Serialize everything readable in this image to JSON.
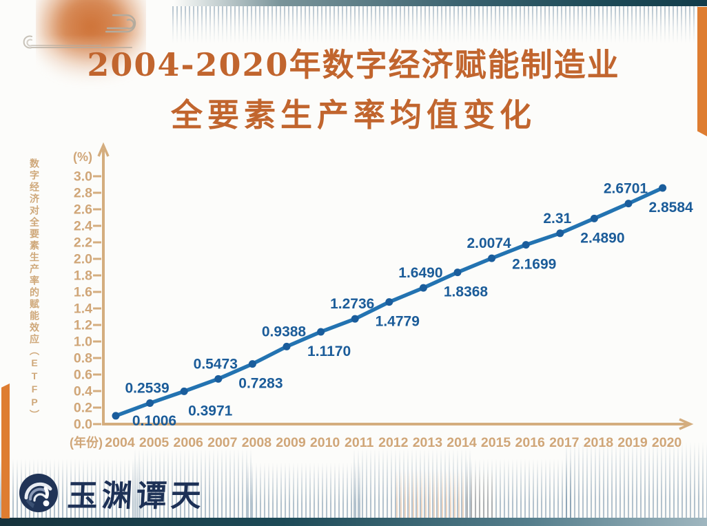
{
  "header": {
    "title_line1": "2004-2020年数字经济赋能制造业",
    "title_line2": "全要素生产率均值变化",
    "title_color": "#c1652e"
  },
  "chart_data": {
    "type": "line",
    "title": "2004-2020年数字经济赋能制造业全要素生产率均值变化",
    "x": [
      2004,
      2005,
      2006,
      2007,
      2008,
      2009,
      2010,
      2011,
      2012,
      2013,
      2014,
      2015,
      2016,
      2017,
      2018,
      2019,
      2020
    ],
    "values": [
      0.1006,
      0.2539,
      0.3971,
      0.5473,
      0.7283,
      0.9388,
      1.117,
      1.2736,
      1.4779,
      1.649,
      1.8368,
      2.0074,
      2.1699,
      2.31,
      2.489,
      2.6701,
      2.8584
    ],
    "point_labels": [
      "0.1006",
      "0.2539",
      "0.3971",
      "0.5473",
      "0.7283",
      "0.9388",
      "1.1170",
      "1.2736",
      "1.4779",
      "1.6490",
      "1.8368",
      "2.0074",
      "2.1699",
      "2.31",
      "2.4890",
      "2.6701",
      "2.8584"
    ],
    "label_placement": [
      "right",
      "above",
      "below",
      "above",
      "below",
      "above",
      "below",
      "above",
      "below",
      "above",
      "below",
      "above",
      "below",
      "above",
      "below",
      "above",
      "below"
    ],
    "xlabel": "(年份)",
    "ylabel": "数字经济对全要素生产率的赋能效应（ETFP）",
    "y_unit": "(%)",
    "ylim": [
      0.0,
      3.0
    ],
    "y_tick_step": 0.2,
    "y_ticks": [
      "0.0",
      "0.2",
      "0.4",
      "0.6",
      "0.8",
      "1.0",
      "1.2",
      "1.4",
      "1.6",
      "1.8",
      "2.0",
      "2.2",
      "2.4",
      "2.6",
      "2.8",
      "3.0"
    ],
    "grid": false,
    "legend": false,
    "line_color": "#2373b1",
    "point_color": "#1a5d9c",
    "label_color": "#1b5c99",
    "axis_color": "#d4ad7e",
    "tick_label_color": "#d0a678"
  },
  "footer": {
    "logo_text": "玉渊谭天",
    "logo_color": "#1d3156"
  },
  "decor": {
    "accent_orange": "#de7d31",
    "teal_bar": "#1d4a57",
    "stripe_blue": "#6a88a0",
    "sun_orange": "#cb692a",
    "cloud_gray": "#b3ab9e"
  }
}
